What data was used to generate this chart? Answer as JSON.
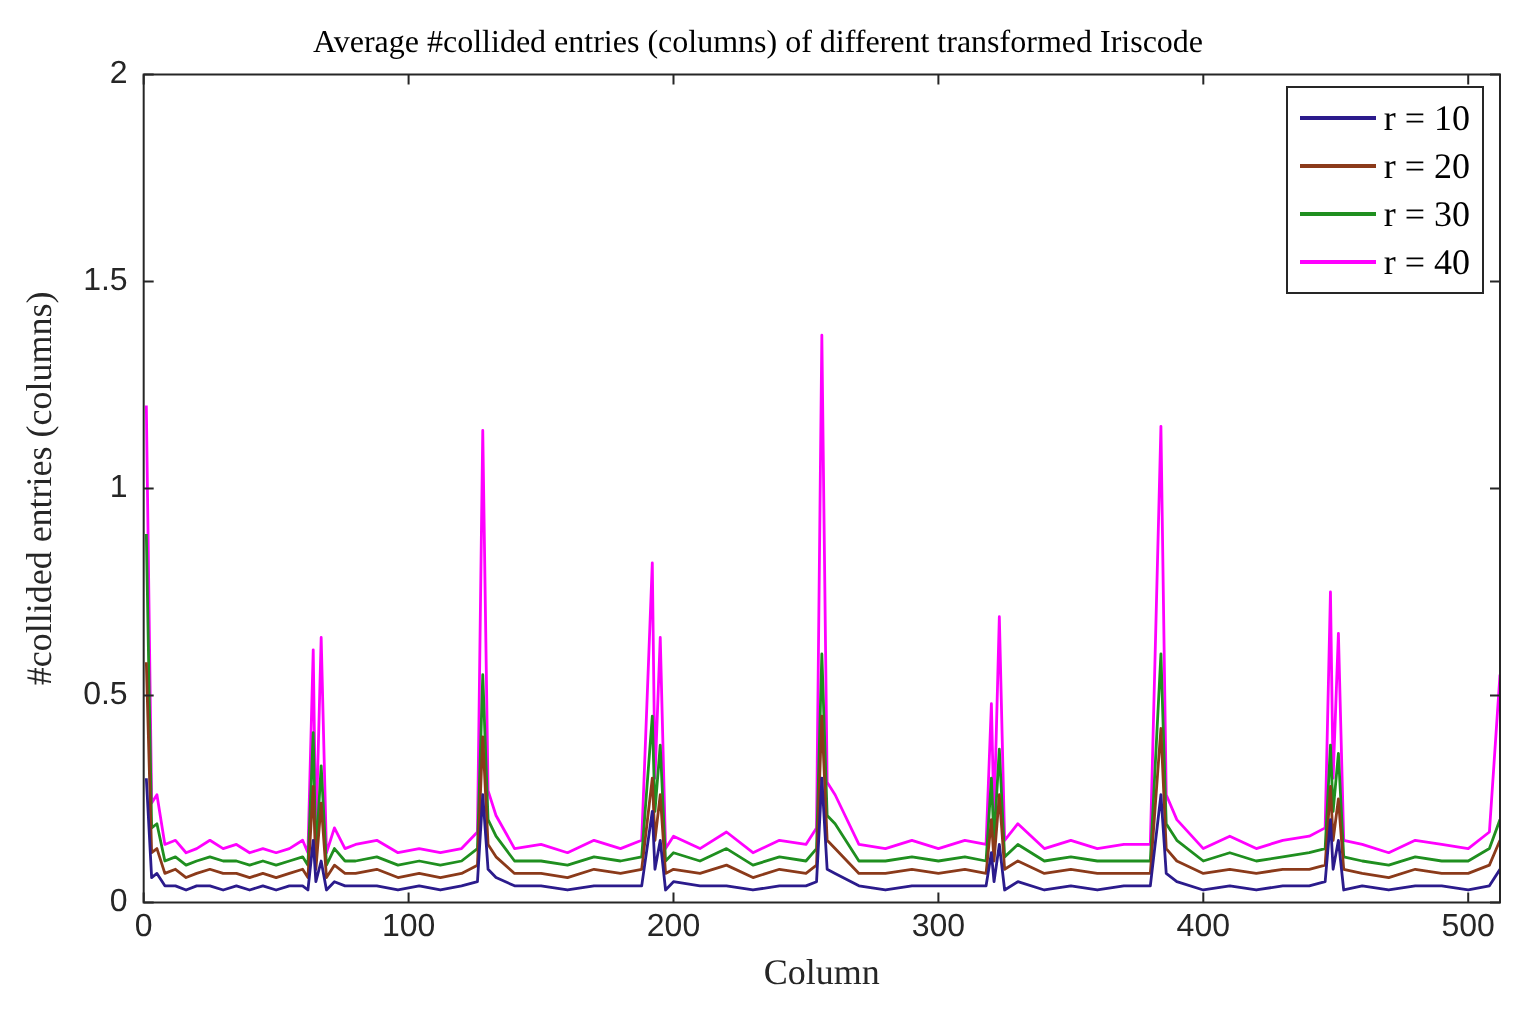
{
  "chart_data": {
    "type": "line",
    "title": "Average #collided entries (columns) of different transformed Iriscode",
    "xlabel": "Column",
    "ylabel": "#collided entries (columns)",
    "x": [
      1,
      3,
      5,
      8,
      12,
      16,
      20,
      25,
      30,
      35,
      40,
      45,
      50,
      55,
      60,
      62,
      64,
      65,
      67,
      69,
      72,
      76,
      80,
      88,
      96,
      104,
      112,
      120,
      126,
      128,
      130,
      133,
      140,
      150,
      160,
      170,
      180,
      188,
      192,
      193,
      195,
      197,
      200,
      210,
      220,
      230,
      240,
      250,
      254,
      256,
      258,
      261,
      270,
      280,
      290,
      300,
      310,
      318,
      320,
      321,
      323,
      325,
      330,
      340,
      350,
      360,
      370,
      380,
      384,
      386,
      390,
      400,
      410,
      420,
      430,
      440,
      446,
      448,
      449,
      451,
      453,
      460,
      470,
      480,
      490,
      500,
      508,
      512
    ],
    "series": [
      {
        "name": "r = 10",
        "color": "#2b1b8c",
        "values": [
          0.3,
          0.06,
          0.07,
          0.04,
          0.04,
          0.03,
          0.04,
          0.04,
          0.03,
          0.04,
          0.03,
          0.04,
          0.03,
          0.04,
          0.04,
          0.03,
          0.15,
          0.05,
          0.1,
          0.03,
          0.05,
          0.04,
          0.04,
          0.04,
          0.03,
          0.04,
          0.03,
          0.04,
          0.05,
          0.26,
          0.08,
          0.06,
          0.04,
          0.04,
          0.03,
          0.04,
          0.04,
          0.04,
          0.22,
          0.08,
          0.15,
          0.03,
          0.05,
          0.04,
          0.04,
          0.03,
          0.04,
          0.04,
          0.05,
          0.3,
          0.08,
          0.07,
          0.04,
          0.03,
          0.04,
          0.04,
          0.04,
          0.04,
          0.12,
          0.05,
          0.14,
          0.03,
          0.05,
          0.03,
          0.04,
          0.03,
          0.04,
          0.04,
          0.26,
          0.07,
          0.05,
          0.03,
          0.04,
          0.03,
          0.04,
          0.04,
          0.05,
          0.2,
          0.08,
          0.15,
          0.03,
          0.04,
          0.03,
          0.04,
          0.04,
          0.03,
          0.04,
          0.08
        ]
      },
      {
        "name": "r = 20",
        "color": "#8b3a1a",
        "values": [
          0.58,
          0.12,
          0.13,
          0.07,
          0.08,
          0.06,
          0.07,
          0.08,
          0.07,
          0.07,
          0.06,
          0.07,
          0.06,
          0.07,
          0.08,
          0.06,
          0.28,
          0.08,
          0.24,
          0.06,
          0.09,
          0.07,
          0.07,
          0.08,
          0.06,
          0.07,
          0.06,
          0.07,
          0.09,
          0.4,
          0.14,
          0.11,
          0.07,
          0.07,
          0.06,
          0.08,
          0.07,
          0.08,
          0.3,
          0.15,
          0.26,
          0.07,
          0.08,
          0.07,
          0.09,
          0.06,
          0.08,
          0.07,
          0.09,
          0.45,
          0.15,
          0.13,
          0.07,
          0.07,
          0.08,
          0.07,
          0.08,
          0.07,
          0.2,
          0.1,
          0.26,
          0.08,
          0.1,
          0.07,
          0.08,
          0.07,
          0.07,
          0.07,
          0.42,
          0.13,
          0.1,
          0.07,
          0.08,
          0.07,
          0.08,
          0.08,
          0.09,
          0.28,
          0.15,
          0.25,
          0.08,
          0.07,
          0.06,
          0.08,
          0.07,
          0.07,
          0.09,
          0.15
        ]
      },
      {
        "name": "r = 30",
        "color": "#1f8f1f",
        "values": [
          0.89,
          0.18,
          0.19,
          0.1,
          0.11,
          0.09,
          0.1,
          0.11,
          0.1,
          0.1,
          0.09,
          0.1,
          0.09,
          0.1,
          0.11,
          0.09,
          0.41,
          0.11,
          0.33,
          0.09,
          0.13,
          0.1,
          0.1,
          0.11,
          0.09,
          0.1,
          0.09,
          0.1,
          0.13,
          0.55,
          0.2,
          0.16,
          0.1,
          0.1,
          0.09,
          0.11,
          0.1,
          0.11,
          0.45,
          0.22,
          0.38,
          0.1,
          0.12,
          0.1,
          0.13,
          0.09,
          0.11,
          0.1,
          0.13,
          0.6,
          0.21,
          0.19,
          0.1,
          0.1,
          0.11,
          0.1,
          0.11,
          0.1,
          0.3,
          0.15,
          0.37,
          0.11,
          0.14,
          0.1,
          0.11,
          0.1,
          0.1,
          0.1,
          0.6,
          0.19,
          0.15,
          0.1,
          0.12,
          0.1,
          0.11,
          0.12,
          0.13,
          0.38,
          0.22,
          0.36,
          0.11,
          0.1,
          0.09,
          0.11,
          0.1,
          0.1,
          0.13,
          0.2
        ]
      },
      {
        "name": "r = 40",
        "color": "#ff00ff",
        "values": [
          1.2,
          0.24,
          0.26,
          0.14,
          0.15,
          0.12,
          0.13,
          0.15,
          0.13,
          0.14,
          0.12,
          0.13,
          0.12,
          0.13,
          0.15,
          0.12,
          0.61,
          0.15,
          0.64,
          0.12,
          0.18,
          0.13,
          0.14,
          0.15,
          0.12,
          0.13,
          0.12,
          0.13,
          0.17,
          1.14,
          0.27,
          0.21,
          0.13,
          0.14,
          0.12,
          0.15,
          0.13,
          0.15,
          0.82,
          0.3,
          0.64,
          0.13,
          0.16,
          0.13,
          0.17,
          0.12,
          0.15,
          0.14,
          0.18,
          1.37,
          0.29,
          0.26,
          0.14,
          0.13,
          0.15,
          0.13,
          0.15,
          0.14,
          0.48,
          0.2,
          0.69,
          0.15,
          0.19,
          0.13,
          0.15,
          0.13,
          0.14,
          0.14,
          1.15,
          0.26,
          0.2,
          0.13,
          0.16,
          0.13,
          0.15,
          0.16,
          0.18,
          0.75,
          0.3,
          0.65,
          0.15,
          0.14,
          0.12,
          0.15,
          0.14,
          0.13,
          0.17,
          0.55
        ]
      }
    ],
    "xlim": [
      0,
      512
    ],
    "xticks": [
      0,
      100,
      200,
      300,
      400,
      500
    ],
    "ylim": [
      0,
      2
    ],
    "yticks": [
      0,
      0.5,
      1,
      1.5,
      2
    ],
    "grid": false,
    "legend": "top right",
    "marker": "none",
    "line_style": "solid"
  }
}
